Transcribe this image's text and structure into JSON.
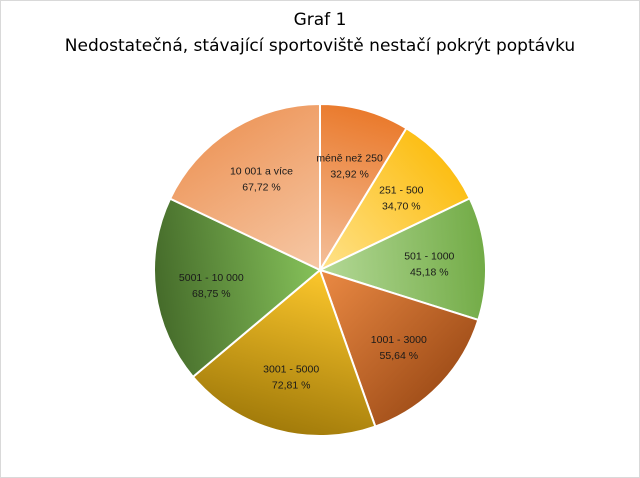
{
  "chart_data": {
    "type": "pie",
    "title": "Graf 1",
    "subtitle": "Nedostatečná, stávající sportoviště nestačí pokrýt poptávku",
    "categories": [
      "méně než 250",
      "251 - 500",
      "501 - 1000",
      "1001 - 3000",
      "3001 - 5000",
      "5001 - 10 000",
      "10 001 a více"
    ],
    "values": [
      32.92,
      34.7,
      45.18,
      55.64,
      72.81,
      68.75,
      67.72
    ],
    "value_labels": [
      "32,92 %",
      "34,70 %",
      "45,18 %",
      "55,64 %",
      "72,81 %",
      "68,75 %",
      "67,72 %"
    ],
    "colors": [
      [
        "#f4c09c",
        "#ea7a2c"
      ],
      [
        "#ffe28a",
        "#fcbe14"
      ],
      [
        "#b4d997",
        "#72ab46"
      ],
      [
        "#eb8a44",
        "#a3501a"
      ],
      [
        "#fcc72c",
        "#a27b0a"
      ],
      [
        "#86c25a",
        "#456b2a"
      ],
      [
        "#f6c8a6",
        "#ee9a60"
      ]
    ],
    "start_angle": 0,
    "direction": "clockwise",
    "legend": "none"
  }
}
